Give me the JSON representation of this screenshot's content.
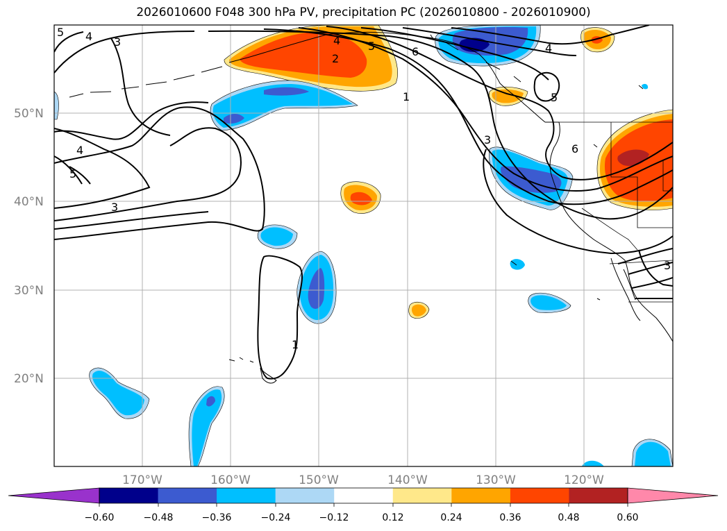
{
  "title": "2026010600 F048 300 hPa PV, precipitation PC (2026010800 - 2026010900)",
  "map": {
    "projection": "equirectangular",
    "lon_range": [
      -180,
      -110
    ],
    "lat_range": [
      10,
      60
    ],
    "latitude_labels": [
      "20°N",
      "30°N",
      "40°N",
      "50°N"
    ],
    "longitude_labels": [
      "170°W",
      "160°W",
      "150°W",
      "140°W",
      "130°W",
      "120°W"
    ],
    "contour_labels": [
      "5",
      "4",
      "3",
      "2",
      "1",
      "4",
      "5",
      "6",
      "4",
      "5",
      "3",
      "6",
      "4",
      "5",
      "3",
      "1",
      "3"
    ]
  },
  "colorbar": {
    "tick_labels": [
      "−0.60",
      "−0.48",
      "−0.36",
      "−0.24",
      "−0.12",
      "0.12",
      "0.24",
      "0.36",
      "0.48",
      "0.60"
    ],
    "colors": [
      "#9932cc",
      "#00008b",
      "#3c5bd0",
      "#00bfff",
      "#add8f5",
      "#ffffff",
      "#ffe88a",
      "#ffa500",
      "#ff4500",
      "#b22222",
      "#ff88aa"
    ],
    "extend": "both"
  },
  "fill_colors": {
    "neg1": "#add8f5",
    "neg2": "#00bfff",
    "neg3": "#3c5bd0",
    "neg4": "#00008b",
    "pos1": "#ffe88a",
    "pos2": "#ffa500",
    "pos3": "#ff4500",
    "pos4": "#b22222"
  }
}
